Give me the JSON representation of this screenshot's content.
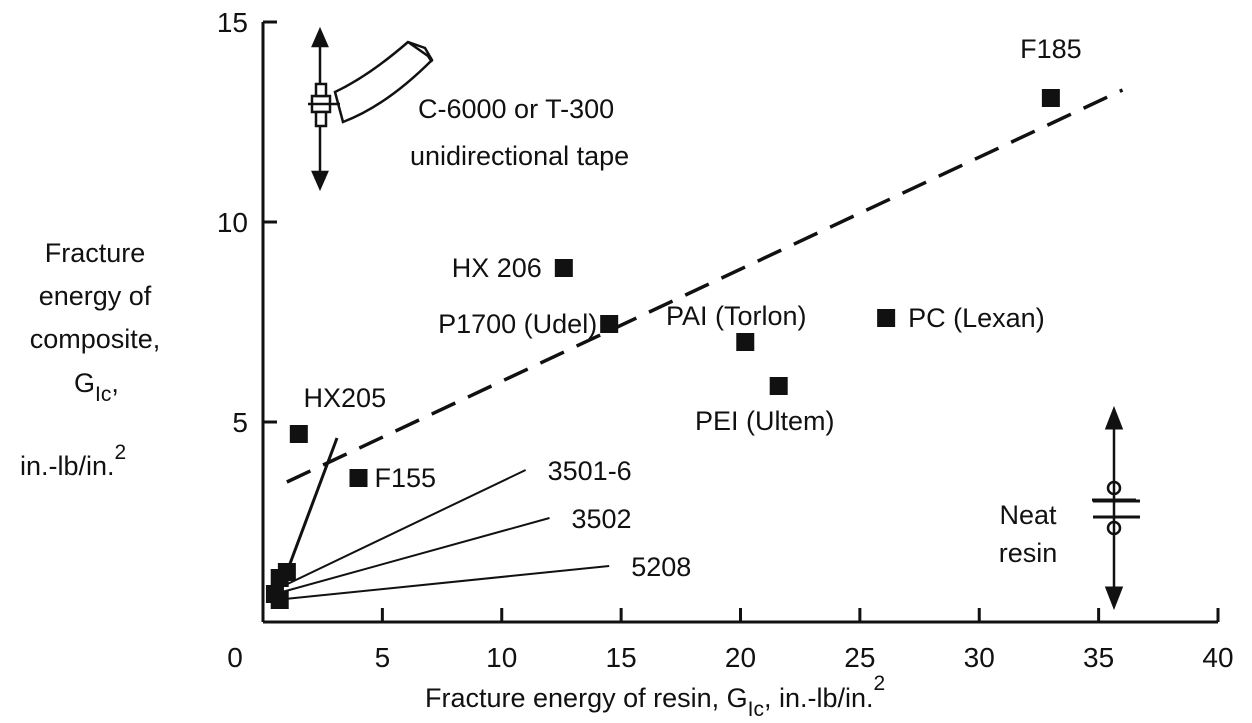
{
  "chart_data": {
    "type": "scatter",
    "title": "",
    "xlabel": {
      "main": "Fracture energy of resin, G",
      "sub": "Ic",
      "rest": ", in.-lb/in.",
      "sup": "2"
    },
    "ylabel": {
      "line1": "Fracture",
      "line2": "energy of",
      "line3": "composite,",
      "line4_main": "G",
      "line4_sub": "Ic",
      "line4_rest": ",",
      "line5_main": "in.-lb/in.",
      "line5_sup": "2"
    },
    "xlim": [
      0,
      40
    ],
    "ylim": [
      0,
      15
    ],
    "x_ticks": [
      0,
      5,
      10,
      15,
      20,
      25,
      30,
      35,
      40
    ],
    "x_tick_labels": [
      "0",
      "5",
      "10",
      "15",
      "20",
      "25",
      "30",
      "35",
      "40"
    ],
    "y_ticks": [
      5,
      10,
      15
    ],
    "y_tick_labels": [
      "5",
      "10",
      "15"
    ],
    "points": [
      {
        "label": "F185",
        "x": 33.0,
        "y": 13.1
      },
      {
        "label": "HX 206",
        "x": 12.6,
        "y": 8.85
      },
      {
        "label": "P1700 (Udel)",
        "x": 14.5,
        "y": 7.45
      },
      {
        "label": "PAI (Torlon)",
        "x": 20.2,
        "y": 7.0
      },
      {
        "label": "PC (Lexan)",
        "x": 26.1,
        "y": 7.6
      },
      {
        "label": "PEI (Ultem)",
        "x": 21.6,
        "y": 5.9
      },
      {
        "label": "HX205",
        "x": 1.5,
        "y": 4.7
      },
      {
        "label": "F155",
        "x": 4.0,
        "y": 3.6
      },
      {
        "label": "",
        "x": 0.7,
        "y": 1.1
      },
      {
        "label": "",
        "x": 1.0,
        "y": 1.25
      },
      {
        "label": "",
        "x": 0.5,
        "y": 0.7
      },
      {
        "label": "",
        "x": 0.7,
        "y": 0.55
      }
    ],
    "trend_line": {
      "style": "dashed",
      "x": [
        1.0,
        36.0
      ],
      "y": [
        3.5,
        13.3
      ]
    },
    "resin_lines": [
      {
        "label": "3501-6",
        "x": [
          0.5,
          11.0
        ],
        "y": [
          0.8,
          3.8
        ]
      },
      {
        "label": "3502",
        "x": [
          0.5,
          12.0
        ],
        "y": [
          0.7,
          2.6
        ]
      },
      {
        "label": "5208",
        "x": [
          0.5,
          14.5
        ],
        "y": [
          0.55,
          1.4
        ]
      }
    ],
    "steep_line": {
      "x": [
        1.0,
        3.1
      ],
      "y": [
        1.25,
        4.6
      ]
    },
    "annotations": {
      "tape_line1": "C-6000 or T-300",
      "tape_line2": "unidirectional tape",
      "neat_line1": "Neat",
      "neat_line2": "resin"
    },
    "grid": false,
    "legend": "none",
    "marker_color": "#111111"
  }
}
